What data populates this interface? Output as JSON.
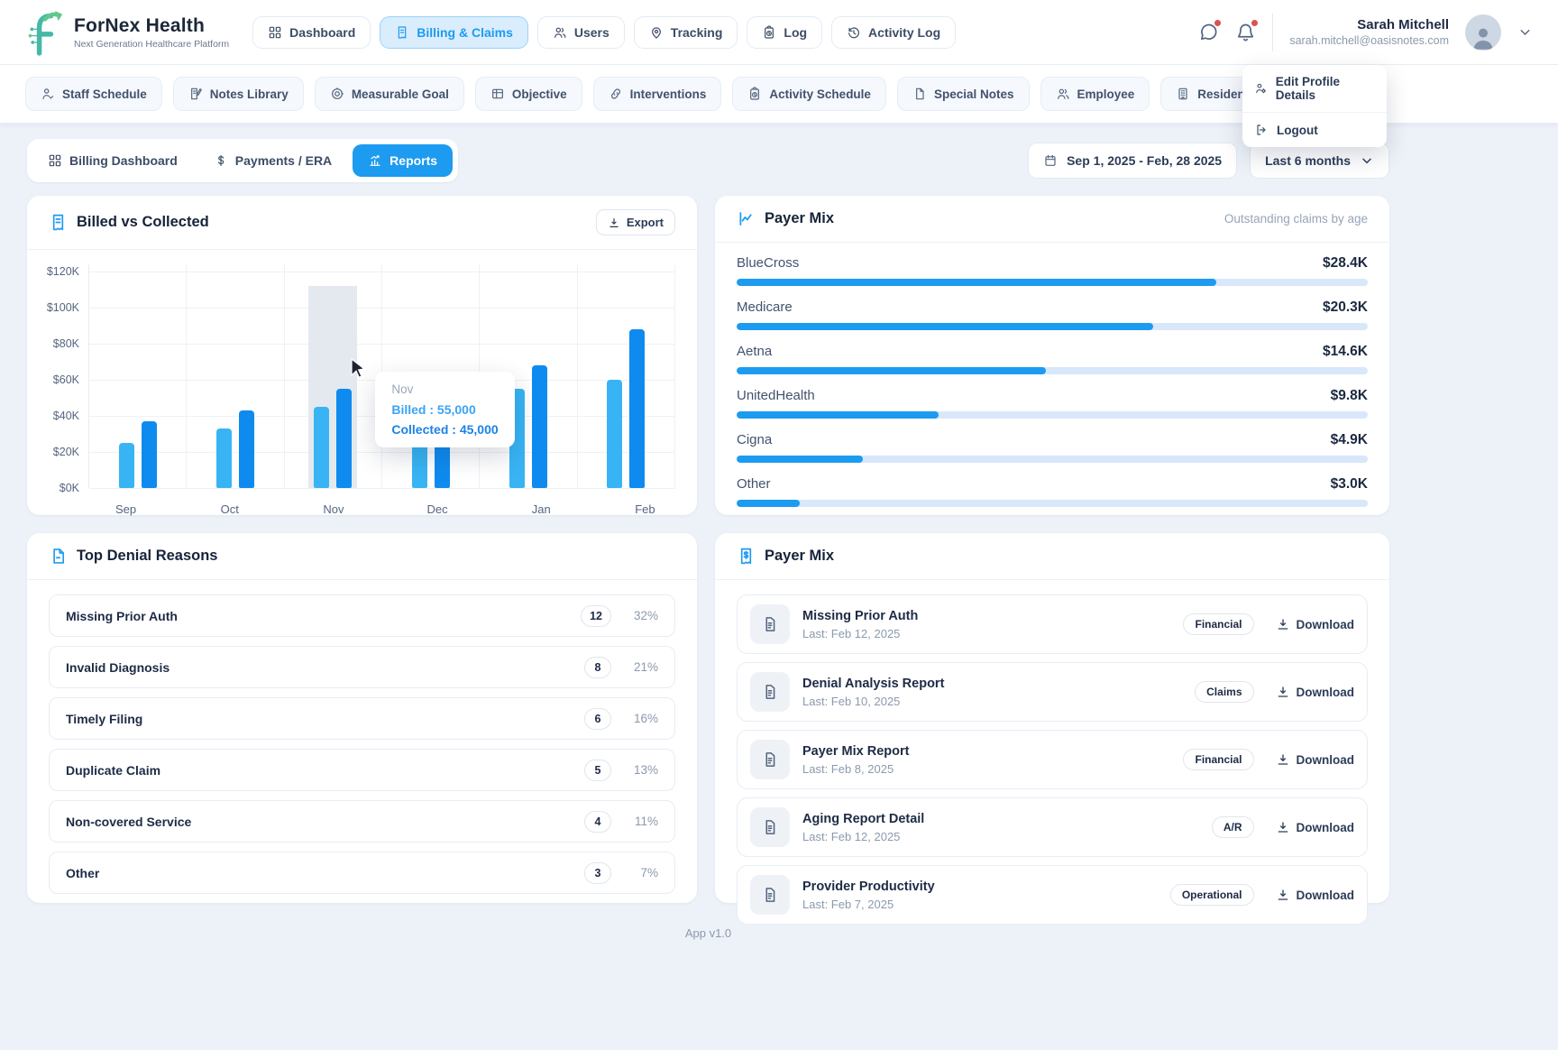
{
  "brand": {
    "name": "ForNex Health",
    "tagline": "Next Generation Healthcare Platform"
  },
  "top_nav": [
    {
      "label": "Dashboard",
      "icon": "grid"
    },
    {
      "label": "Billing & Claims",
      "icon": "receipt",
      "active": true
    },
    {
      "label": "Users",
      "icon": "users"
    },
    {
      "label": "Tracking",
      "icon": "pin"
    },
    {
      "label": "Log",
      "icon": "clipboard-clock"
    },
    {
      "label": "Activity Log",
      "icon": "history"
    }
  ],
  "header_icons": {
    "chat": "chat-icon",
    "bell": "bell-icon",
    "badge_color": "#d9534f"
  },
  "user": {
    "name": "Sarah Mitchell",
    "email": "sarah.mitchell@oasisnotes.com"
  },
  "profile_menu": [
    {
      "label": "Edit Profile Details",
      "icon": "user-gear"
    },
    {
      "label": "Logout",
      "icon": "logout"
    }
  ],
  "sub_nav": [
    {
      "label": "Staff Schedule",
      "icon": "person-check"
    },
    {
      "label": "Notes Library",
      "icon": "notebook-pen"
    },
    {
      "label": "Measurable Goal",
      "icon": "target"
    },
    {
      "label": "Objective",
      "icon": "table"
    },
    {
      "label": "Interventions",
      "icon": "link"
    },
    {
      "label": "Activity Schedule",
      "icon": "clipboard-clock"
    },
    {
      "label": "Special Notes",
      "icon": "file"
    },
    {
      "label": "Employee",
      "icon": "users"
    },
    {
      "label": "Residents",
      "icon": "building"
    }
  ],
  "toolbar": {
    "tabs": [
      {
        "label": "Billing Dashboard",
        "icon": "grid"
      },
      {
        "label": "Payments / ERA",
        "icon": "dollar"
      },
      {
        "label": "Reports",
        "icon": "chart",
        "active": true
      }
    ],
    "date_range": "Sep 1, 2025 - Feb, 28 2025",
    "period": "Last 6 months"
  },
  "billed_card": {
    "title": "Billed vs Collected",
    "export_label": "Export"
  },
  "chart_data": [
    {
      "type": "bar",
      "title": "Billed vs Collected",
      "categories": [
        "Sep",
        "Oct",
        "Nov",
        "Dec",
        "Jan",
        "Feb"
      ],
      "series": [
        {
          "name": "Billed",
          "color": "#0f8bf0",
          "values": [
            37,
            43,
            55,
            60,
            68,
            88
          ]
        },
        {
          "name": "Collected",
          "color": "#38b4f4",
          "values": [
            25,
            33,
            45,
            45,
            55,
            60
          ]
        }
      ],
      "unit": "thousand USD",
      "ylim": [
        0,
        120
      ],
      "y_ticks": [
        "$120K",
        "$100K",
        "$80K",
        "$60K",
        "$40K",
        "$20K",
        "$0K"
      ],
      "grid": true,
      "legend": "none",
      "highlight_month": "Nov",
      "tooltip": {
        "title": "Nov",
        "billed": "Billed : 55,000",
        "collected": "Collected : 45,000"
      }
    },
    {
      "type": "bar",
      "orientation": "horizontal",
      "title": "Payer Mix",
      "subtitle": "Outstanding claims by age",
      "categories": [
        "BlueCross",
        "Medicare",
        "Aetna",
        "UnitedHealth",
        "Cigna",
        "Other"
      ],
      "values": [
        "$28.4K",
        "$20.3K",
        "$14.6K",
        "$9.8K",
        "$4.9K",
        "$3.0K"
      ],
      "fill_pct": [
        76,
        66,
        49,
        32,
        20,
        10
      ],
      "bar_color": "#1d9bf0",
      "track_color": "#d9e7fa"
    }
  ],
  "payer_mix": {
    "title": "Payer Mix",
    "subtitle": "Outstanding claims by age",
    "rows": [
      {
        "name": "BlueCross",
        "amount": "$28.4K",
        "pct": 76
      },
      {
        "name": "Medicare",
        "amount": "$20.3K",
        "pct": 66
      },
      {
        "name": "Aetna",
        "amount": "$14.6K",
        "pct": 49
      },
      {
        "name": "UnitedHealth",
        "amount": "$9.8K",
        "pct": 32
      },
      {
        "name": "Cigna",
        "amount": "$4.9K",
        "pct": 20
      },
      {
        "name": "Other",
        "amount": "$3.0K",
        "pct": 10
      }
    ]
  },
  "denials": {
    "title": "Top Denial Reasons",
    "rows": [
      {
        "label": "Missing Prior Auth",
        "count": "12",
        "pct": "32%"
      },
      {
        "label": "Invalid Diagnosis",
        "count": "8",
        "pct": "21%"
      },
      {
        "label": "Timely Filing",
        "count": "6",
        "pct": "16%"
      },
      {
        "label": "Duplicate Claim",
        "count": "5",
        "pct": "13%"
      },
      {
        "label": "Non-covered Service",
        "count": "4",
        "pct": "11%"
      },
      {
        "label": "Other",
        "count": "3",
        "pct": "7%"
      }
    ]
  },
  "reports": {
    "title": "Payer Mix",
    "download_label": "Download",
    "rows": [
      {
        "title": "Missing Prior Auth",
        "last": "Last: Feb 12, 2025",
        "badge": "Financial"
      },
      {
        "title": "Denial Analysis Report",
        "last": "Last: Feb 10, 2025",
        "badge": "Claims"
      },
      {
        "title": "Payer Mix Report",
        "last": "Last: Feb 8, 2025",
        "badge": "Financial"
      },
      {
        "title": "Aging Report Detail",
        "last": "Last: Feb 12, 2025",
        "badge": "A/R"
      },
      {
        "title": "Provider Productivity",
        "last": "Last: Feb 7, 2025",
        "badge": "Operational"
      }
    ]
  },
  "footer": {
    "version": "App v1.0"
  },
  "colors": {
    "accent": "#1d9bf0",
    "bar_billed": "#0f8bf0",
    "bar_collected": "#38b4f4",
    "badge_dot": "#d9534f",
    "page_bg": "#edf2f8"
  }
}
